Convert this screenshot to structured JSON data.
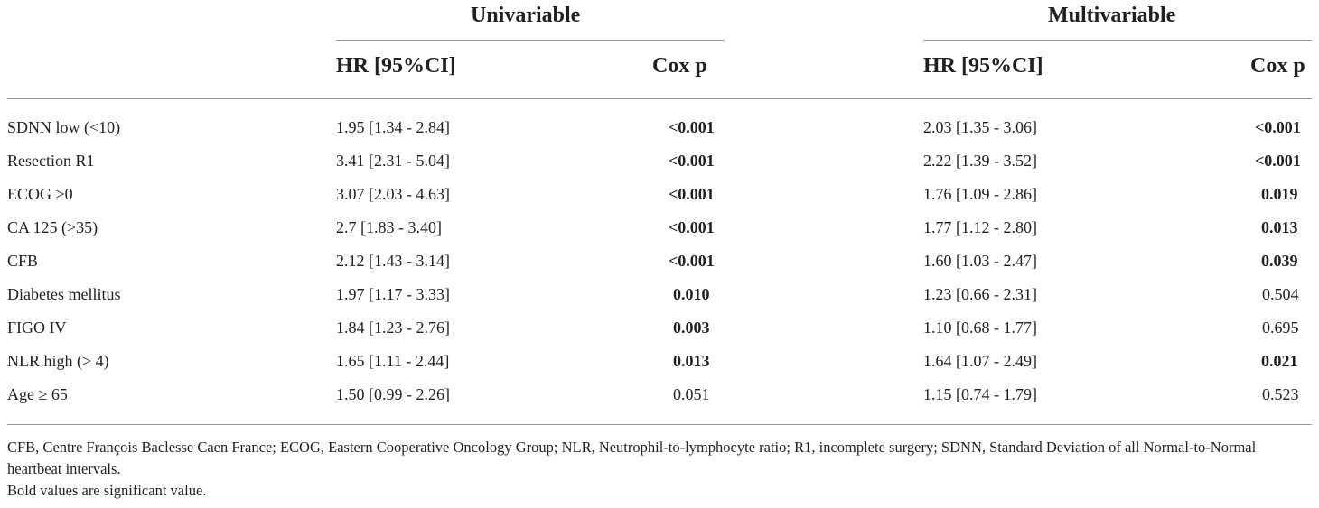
{
  "header": {
    "univariable": "Univariable",
    "multivariable": "Multivariable",
    "hr_label": "HR [95%CI]",
    "p_label": "Cox p"
  },
  "rows": [
    {
      "variable": "SDNN low (<10)",
      "uni_hr": "1.95 [1.34 - 2.84]",
      "uni_p": "<0.001",
      "uni_p_bold": true,
      "multi_hr": "2.03 [1.35 - 3.06]",
      "multi_p": "<0.001",
      "multi_p_bold": true
    },
    {
      "variable": "Resection R1",
      "uni_hr": "3.41 [2.31 - 5.04]",
      "uni_p": "<0.001",
      "uni_p_bold": true,
      "multi_hr": "2.22 [1.39 - 3.52]",
      "multi_p": "<0.001",
      "multi_p_bold": true
    },
    {
      "variable": "ECOG >0",
      "uni_hr": "3.07 [2.03 - 4.63]",
      "uni_p": "<0.001",
      "uni_p_bold": true,
      "multi_hr": "1.76 [1.09 - 2.86]",
      "multi_p": "0.019",
      "multi_p_bold": true
    },
    {
      "variable": "CA 125 (>35)",
      "uni_hr": "2.7 [1.83 - 3.40]",
      "uni_p": "<0.001",
      "uni_p_bold": true,
      "multi_hr": "1.77 [1.12 - 2.80]",
      "multi_p": "0.013",
      "multi_p_bold": true
    },
    {
      "variable": "CFB",
      "uni_hr": "2.12 [1.43 - 3.14]",
      "uni_p": "<0.001",
      "uni_p_bold": true,
      "multi_hr": "1.60 [1.03 - 2.47]",
      "multi_p": "0.039",
      "multi_p_bold": true
    },
    {
      "variable": "Diabetes mellitus",
      "uni_hr": "1.97 [1.17 - 3.33]",
      "uni_p": "0.010",
      "uni_p_bold": true,
      "multi_hr": "1.23 [0.66 - 2.31]",
      "multi_p": "0.504",
      "multi_p_bold": false
    },
    {
      "variable": "FIGO IV",
      "uni_hr": "1.84 [1.23 - 2.76]",
      "uni_p": "0.003",
      "uni_p_bold": true,
      "multi_hr": "1.10 [0.68 - 1.77]",
      "multi_p": "0.695",
      "multi_p_bold": false
    },
    {
      "variable": "NLR high (> 4)",
      "uni_hr": "1.65 [1.11 - 2.44]",
      "uni_p": "0.013",
      "uni_p_bold": true,
      "multi_hr": "1.64 [1.07 - 2.49]",
      "multi_p": "0.021",
      "multi_p_bold": true
    },
    {
      "variable": "Age ≥ 65",
      "uni_hr": "1.50 [0.99 - 2.26]",
      "uni_p": "0.051",
      "uni_p_bold": false,
      "multi_hr": "1.15 [0.74 - 1.79]",
      "multi_p": "0.523",
      "multi_p_bold": false
    }
  ],
  "footnote": {
    "abbreviations": "CFB, Centre François Baclesse Caen France; ECOG, Eastern Cooperative Oncology Group; NLR, Neutrophil-to-lymphocyte ratio; R1, incomplete surgery; SDNN, Standard Deviation of all Normal-to-Normal heartbeat intervals.",
    "bold_note": "Bold values are significant value."
  }
}
